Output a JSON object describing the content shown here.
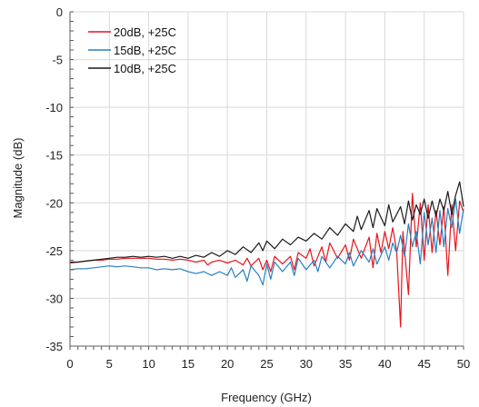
{
  "chart_data": {
    "type": "line",
    "title": "",
    "xlabel": "Frequency (GHz)",
    "ylabel": "Magnitude (dB)",
    "xlim": [
      0,
      50
    ],
    "ylim": [
      -35,
      0
    ],
    "x_ticks": [
      0,
      5,
      10,
      15,
      20,
      25,
      30,
      35,
      40,
      45,
      50
    ],
    "y_ticks": [
      0,
      -5,
      -10,
      -15,
      -20,
      -25,
      -30,
      -35
    ],
    "x_tick_labels": [
      "0",
      "5",
      "10",
      "15",
      "20",
      "25",
      "30",
      "35",
      "40",
      "45",
      "50"
    ],
    "y_tick_labels": [
      "0",
      "-5",
      "-10",
      "-15",
      "-20",
      "-25",
      "-30",
      "-35"
    ],
    "grid": true,
    "legend_position": "top-left",
    "series": [
      {
        "name": "20dB, +25C",
        "color": "#e8141b",
        "points": [
          [
            0,
            -26.3
          ],
          [
            1,
            -26.2
          ],
          [
            2,
            -26.1
          ],
          [
            3,
            -26.0
          ],
          [
            4,
            -26.0
          ],
          [
            5,
            -25.9
          ],
          [
            6,
            -25.9
          ],
          [
            7,
            -25.8
          ],
          [
            8,
            -25.8
          ],
          [
            9,
            -25.8
          ],
          [
            10,
            -25.8
          ],
          [
            11,
            -25.9
          ],
          [
            12,
            -25.9
          ],
          [
            13,
            -26.0
          ],
          [
            14,
            -25.9
          ],
          [
            15,
            -26.0
          ],
          [
            16,
            -26.2
          ],
          [
            17,
            -26.0
          ],
          [
            17.5,
            -26.5
          ],
          [
            18,
            -26.2
          ],
          [
            19,
            -26.0
          ],
          [
            20,
            -26.3
          ],
          [
            21,
            -26.0
          ],
          [
            22,
            -26.5
          ],
          [
            22.5,
            -25.8
          ],
          [
            23,
            -26.6
          ],
          [
            24,
            -25.8
          ],
          [
            24.5,
            -27.0
          ],
          [
            25,
            -26.0
          ],
          [
            25.5,
            -27.2
          ],
          [
            26,
            -25.6
          ],
          [
            27,
            -26.4
          ],
          [
            28,
            -25.6
          ],
          [
            28.5,
            -27.0
          ],
          [
            29,
            -25.2
          ],
          [
            30,
            -25.8
          ],
          [
            30.5,
            -24.8
          ],
          [
            31,
            -26.6
          ],
          [
            32,
            -24.6
          ],
          [
            32.5,
            -26.2
          ],
          [
            33,
            -24.2
          ],
          [
            34,
            -25.8
          ],
          [
            35,
            -24.4
          ],
          [
            35.5,
            -26.0
          ],
          [
            36,
            -23.8
          ],
          [
            37,
            -25.8
          ],
          [
            38,
            -23.6
          ],
          [
            38.5,
            -26.8
          ],
          [
            39,
            -23.2
          ],
          [
            39.5,
            -25.2
          ],
          [
            40,
            -23.0
          ],
          [
            40.5,
            -24.8
          ],
          [
            41,
            -22.6
          ],
          [
            41.5,
            -25.0
          ],
          [
            42,
            -33.0
          ],
          [
            42.3,
            -23.0
          ],
          [
            43,
            -29.6
          ],
          [
            43.5,
            -19.0
          ],
          [
            44,
            -24.6
          ],
          [
            44.5,
            -20.0
          ],
          [
            45,
            -26.0
          ],
          [
            45.5,
            -20.2
          ],
          [
            46,
            -25.2
          ],
          [
            46.5,
            -20.8
          ],
          [
            47,
            -24.4
          ],
          [
            47.5,
            -20.4
          ],
          [
            48,
            -27.6
          ],
          [
            48.5,
            -20.2
          ],
          [
            49,
            -25.0
          ],
          [
            49.5,
            -19.8
          ],
          [
            50,
            -21.0
          ]
        ]
      },
      {
        "name": "15dB, +25C",
        "color": "#2a7fc0",
        "points": [
          [
            0,
            -27.0
          ],
          [
            1,
            -26.9
          ],
          [
            2,
            -26.9
          ],
          [
            3,
            -26.8
          ],
          [
            4,
            -26.7
          ],
          [
            5,
            -26.6
          ],
          [
            6,
            -26.7
          ],
          [
            7,
            -26.6
          ],
          [
            8,
            -26.7
          ],
          [
            9,
            -26.8
          ],
          [
            10,
            -26.8
          ],
          [
            11,
            -27.0
          ],
          [
            12,
            -26.9
          ],
          [
            13,
            -27.0
          ],
          [
            14,
            -26.9
          ],
          [
            15,
            -27.2
          ],
          [
            16,
            -27.4
          ],
          [
            17,
            -27.2
          ],
          [
            18,
            -27.6
          ],
          [
            19,
            -27.2
          ],
          [
            20,
            -27.6
          ],
          [
            20.5,
            -26.8
          ],
          [
            21,
            -27.8
          ],
          [
            22,
            -27.0
          ],
          [
            22.5,
            -28.2
          ],
          [
            23,
            -26.6
          ],
          [
            24,
            -27.6
          ],
          [
            24.5,
            -28.6
          ],
          [
            25,
            -26.4
          ],
          [
            25.5,
            -28.0
          ],
          [
            26,
            -26.2
          ],
          [
            27,
            -27.2
          ],
          [
            28,
            -26.2
          ],
          [
            28.5,
            -27.6
          ],
          [
            29,
            -25.8
          ],
          [
            30,
            -27.0
          ],
          [
            31,
            -26.0
          ],
          [
            31.5,
            -27.2
          ],
          [
            32,
            -25.6
          ],
          [
            33,
            -26.8
          ],
          [
            34,
            -25.6
          ],
          [
            35,
            -26.4
          ],
          [
            35.5,
            -25.2
          ],
          [
            36,
            -26.6
          ],
          [
            37,
            -25.0
          ],
          [
            38,
            -26.2
          ],
          [
            38.5,
            -24.8
          ],
          [
            39,
            -26.4
          ],
          [
            40,
            -24.6
          ],
          [
            40.5,
            -26.0
          ],
          [
            41,
            -24.2
          ],
          [
            41.5,
            -25.2
          ],
          [
            42,
            -23.4
          ],
          [
            42.5,
            -25.6
          ],
          [
            43,
            -22.2
          ],
          [
            43.5,
            -24.6
          ],
          [
            44,
            -23.0
          ],
          [
            44.5,
            -26.4
          ],
          [
            45,
            -21.0
          ],
          [
            45.5,
            -24.4
          ],
          [
            46,
            -21.6
          ],
          [
            46.5,
            -25.2
          ],
          [
            47,
            -20.8
          ],
          [
            47.5,
            -24.6
          ],
          [
            48,
            -20.6
          ],
          [
            48.5,
            -22.6
          ],
          [
            49,
            -19.6
          ],
          [
            49.5,
            -23.2
          ],
          [
            50,
            -20.6
          ]
        ]
      },
      {
        "name": "10dB, +25C",
        "color": "#1a1a1a",
        "points": [
          [
            0,
            -26.2
          ],
          [
            1,
            -26.2
          ],
          [
            2,
            -26.1
          ],
          [
            3,
            -26.0
          ],
          [
            4,
            -25.9
          ],
          [
            5,
            -25.8
          ],
          [
            6,
            -25.7
          ],
          [
            7,
            -25.7
          ],
          [
            8,
            -25.6
          ],
          [
            9,
            -25.7
          ],
          [
            10,
            -25.6
          ],
          [
            11,
            -25.7
          ],
          [
            12,
            -25.6
          ],
          [
            13,
            -25.8
          ],
          [
            14,
            -25.6
          ],
          [
            15,
            -25.8
          ],
          [
            16,
            -25.5
          ],
          [
            17,
            -25.7
          ],
          [
            18,
            -25.2
          ],
          [
            19,
            -25.6
          ],
          [
            20,
            -25.0
          ],
          [
            21,
            -25.4
          ],
          [
            22,
            -24.6
          ],
          [
            23,
            -25.2
          ],
          [
            24,
            -24.2
          ],
          [
            24.5,
            -25.0
          ],
          [
            25,
            -24.0
          ],
          [
            26,
            -24.8
          ],
          [
            27,
            -23.8
          ],
          [
            28,
            -24.4
          ],
          [
            29,
            -23.6
          ],
          [
            30,
            -24.0
          ],
          [
            31,
            -23.2
          ],
          [
            32,
            -23.8
          ],
          [
            33,
            -22.6
          ],
          [
            34,
            -23.4
          ],
          [
            35,
            -22.2
          ],
          [
            36,
            -23.0
          ],
          [
            36.5,
            -21.4
          ],
          [
            37,
            -22.8
          ],
          [
            38,
            -20.8
          ],
          [
            38.5,
            -22.6
          ],
          [
            39,
            -20.6
          ],
          [
            40,
            -22.4
          ],
          [
            40.5,
            -20.2
          ],
          [
            41,
            -22.0
          ],
          [
            42,
            -20.4
          ],
          [
            42.5,
            -22.2
          ],
          [
            43,
            -19.8
          ],
          [
            43.5,
            -21.8
          ],
          [
            44,
            -20.2
          ],
          [
            44.5,
            -21.2
          ],
          [
            45,
            -19.6
          ],
          [
            45.5,
            -21.6
          ],
          [
            46,
            -19.8
          ],
          [
            46.5,
            -21.4
          ],
          [
            47,
            -19.6
          ],
          [
            47.5,
            -20.8
          ],
          [
            48,
            -18.8
          ],
          [
            48.5,
            -21.2
          ],
          [
            49,
            -19.2
          ],
          [
            49.5,
            -17.8
          ],
          [
            50,
            -20.4
          ]
        ]
      }
    ]
  }
}
